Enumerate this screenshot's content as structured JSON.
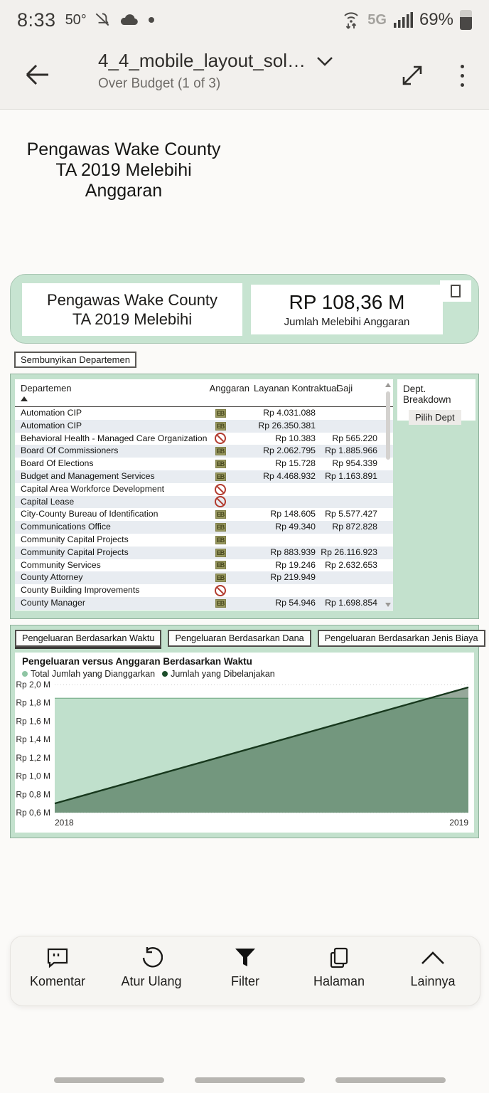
{
  "status_bar": {
    "time": "8:33",
    "temperature": "50°",
    "network": "5G",
    "battery_percent": "69%"
  },
  "header": {
    "title": "4_4_mobile_layout_sol…",
    "subtitle": "Over Budget (1 of 3)"
  },
  "page": {
    "title_lines": [
      "Pengawas Wake County",
      "TA 2019 Melebihi",
      "Anggaran"
    ]
  },
  "kpi_card": {
    "title_line1": "Pengawas Wake County",
    "title_line2": "TA 2019 Melebihi",
    "value": "RP 108,36 M",
    "value_label": "Jumlah Melebihi Anggaran"
  },
  "hide_button_label": "Sembunyikan Departemen",
  "table": {
    "columns": [
      "Departemen",
      "Anggaran",
      "Layanan Kontraktual",
      "Gaji"
    ],
    "kpi_glyph": "EB",
    "rows": [
      {
        "name": "Automation CIP",
        "status": "kpi",
        "contract": "Rp 4.031.088",
        "salary": ""
      },
      {
        "name": "Automation CIP",
        "status": "kpi",
        "contract": "Rp 26.350.381",
        "salary": ""
      },
      {
        "name": "Behavioral Health - Managed Care Organization",
        "status": "blocked",
        "contract": "Rp 10.383",
        "salary": "Rp 565.220"
      },
      {
        "name": "Board Of Commissioners",
        "status": "kpi",
        "contract": "Rp 2.062.795",
        "salary": "Rp 1.885.966"
      },
      {
        "name": "Board Of Elections",
        "status": "kpi",
        "contract": "Rp 15.728",
        "salary": "Rp 954.339"
      },
      {
        "name": "Budget and Management Services",
        "status": "kpi",
        "contract": "Rp 4.468.932",
        "salary": "Rp 1.163.891"
      },
      {
        "name": "Capital Area Workforce Development",
        "status": "blocked",
        "contract": "",
        "salary": ""
      },
      {
        "name": "Capital Lease",
        "status": "blocked",
        "contract": "",
        "salary": ""
      },
      {
        "name": "City-County Bureau of Identification",
        "status": "kpi",
        "contract": "Rp 148.605",
        "salary": "Rp 5.577.427"
      },
      {
        "name": "Communications Office",
        "status": "kpi",
        "contract": "Rp 49.340",
        "salary": "Rp 872.828"
      },
      {
        "name": "Community Capital Projects",
        "status": "kpi",
        "contract": "",
        "salary": ""
      },
      {
        "name": "Community Capital Projects",
        "status": "kpi",
        "contract": "Rp 883.939",
        "salary": "Rp 26.116.923"
      },
      {
        "name": "Community Services",
        "status": "kpi",
        "contract": "Rp 19.246",
        "salary": "Rp 2.632.653"
      },
      {
        "name": "County Attorney",
        "status": "kpi",
        "contract": "Rp 219.949",
        "salary": ""
      },
      {
        "name": "County Building Improvements",
        "status": "blocked",
        "contract": "",
        "salary": ""
      },
      {
        "name": "County Manager",
        "status": "kpi",
        "contract": "Rp 54.946",
        "salary": "Rp 1.698.854"
      }
    ]
  },
  "dept_panel": {
    "title": "Dept. Breakdown",
    "button_label": "Pilih Dept"
  },
  "tabs": [
    {
      "label": "Pengeluaran Berdasarkan Waktu",
      "selected": true
    },
    {
      "label": "Pengeluaran Berdasarkan Dana",
      "selected": false
    },
    {
      "label": "Pengeluaran Berdasarkan Jenis Biaya",
      "selected": false
    }
  ],
  "chart_data": {
    "type": "area",
    "title": "Pengeluaran versus Anggaran Berdasarkan Waktu",
    "x_ticks": [
      "2018",
      "2019"
    ],
    "ylim": [
      0.6,
      2.0
    ],
    "y_ticks": [
      {
        "label": "Rp 2,0 M",
        "value": 2.0
      },
      {
        "label": "Rp 1,8 M",
        "value": 1.8
      },
      {
        "label": "Rp 1,6 M",
        "value": 1.6
      },
      {
        "label": "Rp 1,4 M",
        "value": 1.4
      },
      {
        "label": "Rp 1,2 M",
        "value": 1.2
      },
      {
        "label": "Rp 1,0 M",
        "value": 1.0
      },
      {
        "label": "Rp 0,8 M",
        "value": 0.8
      },
      {
        "label": "Rp 0,6 M",
        "value": 0.6
      }
    ],
    "grid": true,
    "legend_position": "top-left",
    "series": [
      {
        "name": "Total Jumlah yang Dianggarkan",
        "x": [
          2018,
          2019
        ],
        "values": [
          1.85,
          1.85
        ],
        "fill": "#c0e0cc",
        "edge": "#84b695",
        "legend_color": "#8fc5a4"
      },
      {
        "name": "Jumlah yang Dibelanjakan",
        "x": [
          2018,
          2019
        ],
        "values": [
          0.7,
          1.97
        ],
        "fill": "rgba(23,62,32,0.45)",
        "edge": "#17381d",
        "legend_color": "#1d4e2c"
      }
    ]
  },
  "toolbar": {
    "items": [
      {
        "label": "Komentar"
      },
      {
        "label": "Atur Ulang"
      },
      {
        "label": "Filter"
      },
      {
        "label": "Halaman"
      },
      {
        "label": "Lainnya"
      }
    ]
  },
  "colors": {
    "panel_green": "#c3e1cd",
    "card_green": "#c7e4d1",
    "alt_row": "#e8ecf1",
    "blocked_red": "#b23a2e",
    "kpi_icon_olive": "#98985f"
  }
}
